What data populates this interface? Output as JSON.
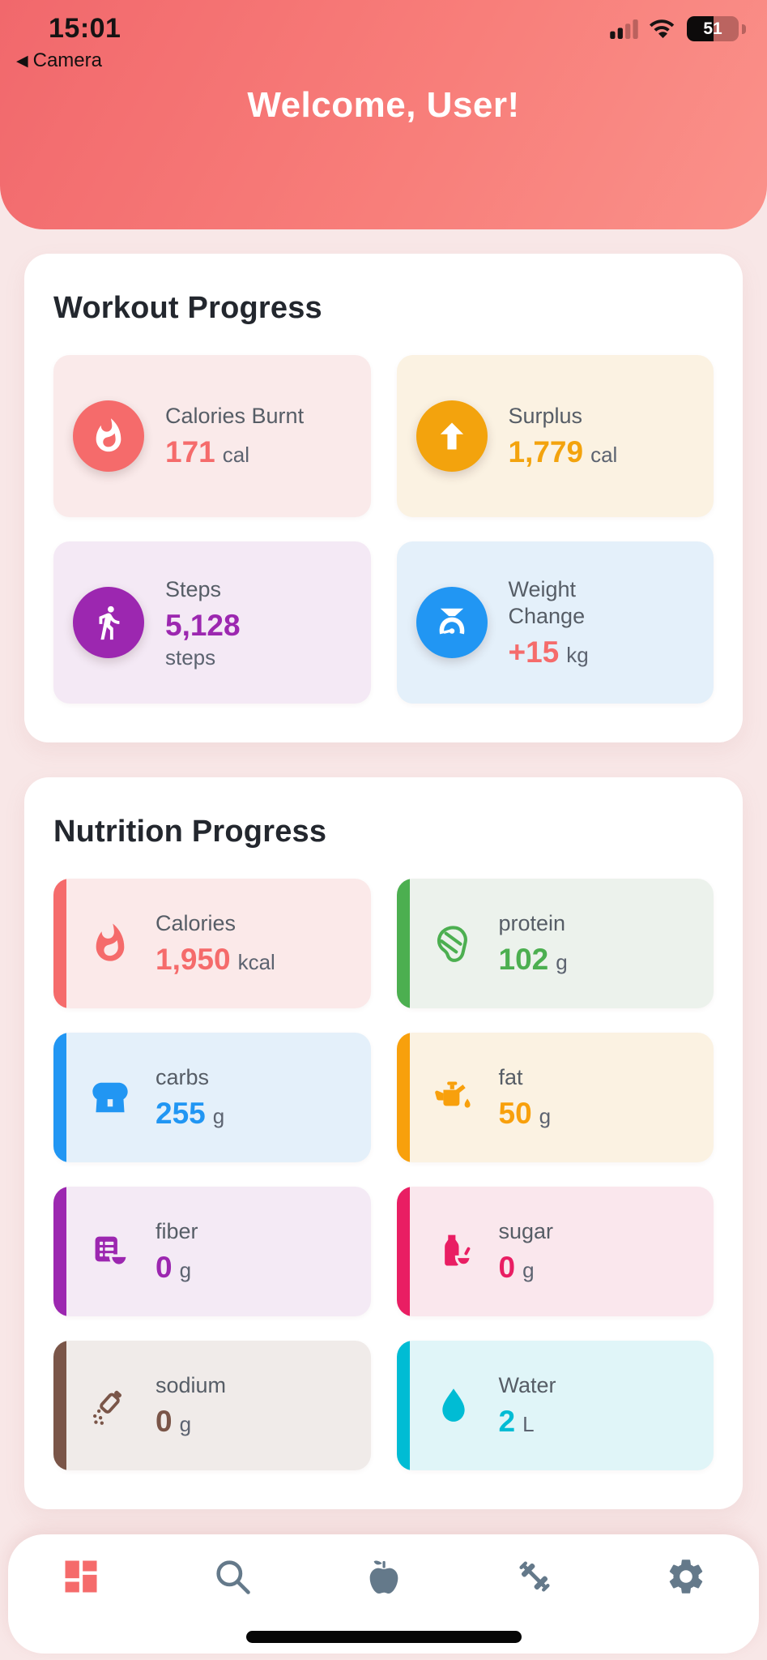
{
  "status_bar": {
    "time": "15:01",
    "back_app": "Camera",
    "battery_percent": "51",
    "icons": [
      "cellular-signal-icon",
      "wifi-icon",
      "battery-icon"
    ]
  },
  "header": {
    "title": "Welcome, User!"
  },
  "workout": {
    "title": "Workout Progress",
    "tiles": [
      {
        "label": "Calories Burnt",
        "value": "171",
        "unit": "cal",
        "icon": "flame-icon",
        "accent": "#f56b6b",
        "tile_bg": "#faeaea"
      },
      {
        "label": "Surplus",
        "value": "1,779",
        "unit": "cal",
        "icon": "arrow-up-icon",
        "accent": "#f3a30d",
        "tile_bg": "#fbf2e2"
      },
      {
        "label": "Steps",
        "value": "5,128",
        "unit": "steps",
        "icon": "walking-person-icon",
        "accent": "#9c27b0",
        "tile_bg": "#f4e9f5",
        "stack_unit": true
      },
      {
        "label": "Weight Change",
        "value": "+15",
        "unit": "kg",
        "icon": "weight-scale-icon",
        "accent": "#2196f3",
        "tile_bg": "#e4f0fa",
        "value_color": "#f56b6b"
      }
    ]
  },
  "nutrition": {
    "title": "Nutrition Progress",
    "tiles": [
      {
        "label": "Calories",
        "value": "1,950",
        "unit": "kcal",
        "icon": "flame-icon",
        "accent": "#f56b6b",
        "tile_bg": "#fbe9e9"
      },
      {
        "label": "protein",
        "value": "102",
        "unit": "g",
        "icon": "meat-icon",
        "accent": "#4caf50",
        "tile_bg": "#ecf2ec"
      },
      {
        "label": "carbs",
        "value": "255",
        "unit": "g",
        "icon": "bread-icon",
        "accent": "#2196f3",
        "tile_bg": "#e4f0fa"
      },
      {
        "label": "fat",
        "value": "50",
        "unit": "g",
        "icon": "oil-can-icon",
        "accent": "#f8a00c",
        "tile_bg": "#fbf2e2"
      },
      {
        "label": "fiber",
        "value": "0",
        "unit": "g",
        "icon": "grain-bowl-icon",
        "accent": "#9c27b0",
        "tile_bg": "#f4eaf5"
      },
      {
        "label": "sugar",
        "value": "0",
        "unit": "g",
        "icon": "sugar-jar-icon",
        "accent": "#e91e63",
        "tile_bg": "#fae7ed"
      },
      {
        "label": "sodium",
        "value": "0",
        "unit": "g",
        "icon": "salt-shaker-icon",
        "accent": "#7a5548",
        "tile_bg": "#f0ebe9"
      },
      {
        "label": "Water",
        "value": "2",
        "unit": "L",
        "icon": "water-drop-icon",
        "accent": "#00bcd4",
        "tile_bg": "#e0f5f8"
      }
    ]
  },
  "tab_bar": {
    "items": [
      {
        "name": "dashboard",
        "icon": "dashboard-icon",
        "active": true
      },
      {
        "name": "search",
        "icon": "search-icon",
        "active": false
      },
      {
        "name": "nutrition",
        "icon": "apple-icon",
        "active": false
      },
      {
        "name": "workout",
        "icon": "dumbbell-icon",
        "active": false
      },
      {
        "name": "settings",
        "icon": "gear-icon",
        "active": false
      }
    ]
  },
  "colors": {
    "header_gradient_start": "#f1686c",
    "header_gradient_end": "#fa918a",
    "page_bg": "#f8e7e7",
    "card_bg": "#ffffff",
    "active_tab": "#f56b6b",
    "inactive_tab": "#64798a",
    "heading_text": "#23272e",
    "label_text": "#565d66",
    "home_indicator": "#060606"
  }
}
